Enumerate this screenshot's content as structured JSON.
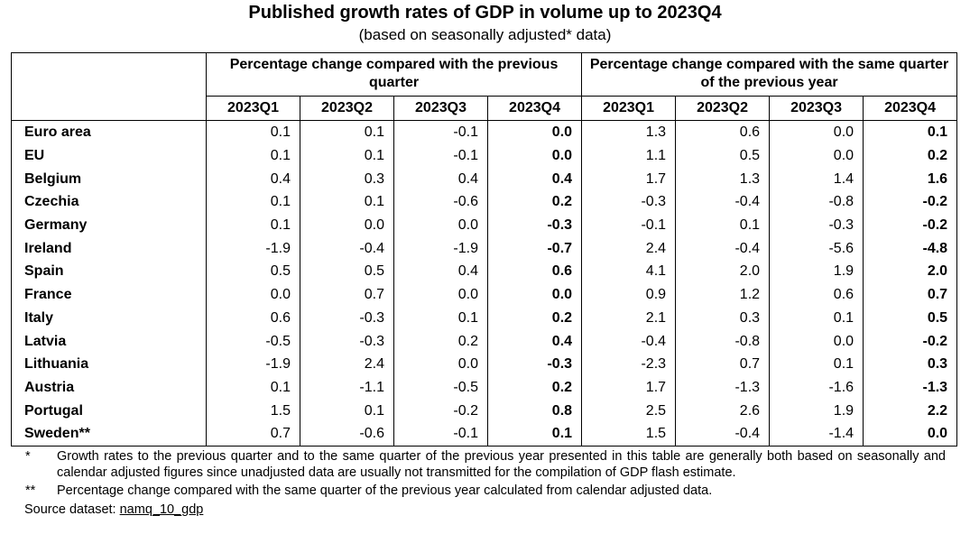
{
  "title": "Published growth rates of GDP in volume up to 2023Q4",
  "subtitle": "(based on seasonally adjusted* data)",
  "table": {
    "group_headers": [
      "Percentage change compared with the previous quarter",
      "Percentage change compared with the same quarter of the previous year"
    ],
    "columns": [
      "2023Q1",
      "2023Q2",
      "2023Q3",
      "2023Q4",
      "2023Q1",
      "2023Q2",
      "2023Q3",
      "2023Q4"
    ],
    "rows": [
      {
        "label": "Euro area",
        "cells": [
          "0.1",
          "0.1",
          "-0.1",
          "0.0",
          "1.3",
          "0.6",
          "0.0",
          "0.1"
        ]
      },
      {
        "label": "EU",
        "cells": [
          "0.1",
          "0.1",
          "-0.1",
          "0.0",
          "1.1",
          "0.5",
          "0.0",
          "0.2"
        ]
      },
      {
        "label": "Belgium",
        "cells": [
          "0.4",
          "0.3",
          "0.4",
          "0.4",
          "1.7",
          "1.3",
          "1.4",
          "1.6"
        ]
      },
      {
        "label": "Czechia",
        "cells": [
          "0.1",
          "0.1",
          "-0.6",
          "0.2",
          "-0.3",
          "-0.4",
          "-0.8",
          "-0.2"
        ]
      },
      {
        "label": "Germany",
        "cells": [
          "0.1",
          "0.0",
          "0.0",
          "-0.3",
          "-0.1",
          "0.1",
          "-0.3",
          "-0.2"
        ]
      },
      {
        "label": "Ireland",
        "cells": [
          "-1.9",
          "-0.4",
          "-1.9",
          "-0.7",
          "2.4",
          "-0.4",
          "-5.6",
          "-4.8"
        ]
      },
      {
        "label": "Spain",
        "cells": [
          "0.5",
          "0.5",
          "0.4",
          "0.6",
          "4.1",
          "2.0",
          "1.9",
          "2.0"
        ]
      },
      {
        "label": "France",
        "cells": [
          "0.0",
          "0.7",
          "0.0",
          "0.0",
          "0.9",
          "1.2",
          "0.6",
          "0.7"
        ]
      },
      {
        "label": "Italy",
        "cells": [
          "0.6",
          "-0.3",
          "0.1",
          "0.2",
          "2.1",
          "0.3",
          "0.1",
          "0.5"
        ]
      },
      {
        "label": "Latvia",
        "cells": [
          "-0.5",
          "-0.3",
          "0.2",
          "0.4",
          "-0.4",
          "-0.8",
          "0.0",
          "-0.2"
        ]
      },
      {
        "label": "Lithuania",
        "cells": [
          "-1.9",
          "2.4",
          "0.0",
          "-0.3",
          "-2.3",
          "0.7",
          "0.1",
          "0.3"
        ]
      },
      {
        "label": "Austria",
        "cells": [
          "0.1",
          "-1.1",
          "-0.5",
          "0.2",
          "1.7",
          "-1.3",
          "-1.6",
          "-1.3"
        ]
      },
      {
        "label": "Portugal",
        "cells": [
          "1.5",
          "0.1",
          "-0.2",
          "0.8",
          "2.5",
          "2.6",
          "1.9",
          "2.2"
        ]
      },
      {
        "label": "Sweden**",
        "cells": [
          "0.7",
          "-0.6",
          "-0.1",
          "0.1",
          "1.5",
          "-0.4",
          "-1.4",
          "0.0"
        ]
      }
    ]
  },
  "footnotes": [
    {
      "marker": "*",
      "text": "Growth rates to the previous quarter and to the same quarter of the previous year presented in this table are generally both based on seasonally and calendar adjusted figures since unadjusted data are usually not transmitted for the compilation of GDP flash estimate."
    },
    {
      "marker": "**",
      "text": "Percentage change compared with the same quarter of the previous year calculated from calendar adjusted data."
    }
  ],
  "source": {
    "label": "Source dataset:",
    "link": "namq_10_gdp"
  }
}
